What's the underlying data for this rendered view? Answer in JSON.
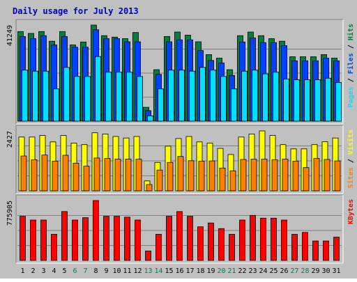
{
  "chart_data": {
    "type": "bar",
    "title": "Daily usage for July 2013",
    "categories": [
      "1",
      "2",
      "3",
      "4",
      "5",
      "6",
      "7",
      "8",
      "9",
      "10",
      "11",
      "12",
      "13",
      "14",
      "15",
      "16",
      "17",
      "18",
      "19",
      "20",
      "21",
      "22",
      "23",
      "24",
      "25",
      "26",
      "27",
      "28",
      "29",
      "30",
      "31"
    ],
    "weekend_days": [
      "6",
      "7",
      "13",
      "14",
      "20",
      "21",
      "27",
      "28"
    ],
    "colors": {
      "background": "#c0c0c0",
      "title": "#0000c0",
      "hits": "#008040",
      "files": "#0040ff",
      "pages": "#00e0ff",
      "visits": "#ffff00",
      "sites": "#ff8000",
      "kbytes": "#ff0000",
      "weekend_label": "#008040",
      "weekday_label": "#000000"
    },
    "panels": [
      {
        "id": "hits-files-pages",
        "y_label": "41249",
        "ylim": [
          0,
          41249
        ],
        "legend": [
          {
            "name": "Pages",
            "color": "#00e0ff"
          },
          {
            "name": "Files",
            "color": "#0040ff"
          },
          {
            "name": "Hits",
            "color": "#008040"
          }
        ],
        "series": [
          {
            "name": "Hits",
            "color": "#008040",
            "values": [
              38480,
              37650,
              38480,
              34300,
              38480,
              32740,
              33990,
              41249,
              36710,
              36080,
              35410,
              38060,
              5960,
              22090,
              36340,
              38270,
              36920,
              34070,
              28570,
              27040,
              22090,
              36710,
              38270,
              36710,
              35410,
              34300,
              27660,
              27660,
              27660,
              28570,
              27040
            ]
          },
          {
            "name": "Files",
            "color": "#0040ff",
            "values": [
              36340,
              35410,
              36710,
              32740,
              36340,
              31740,
              31740,
              39260,
              35410,
              35410,
              34070,
              34070,
              4500,
              20080,
              34070,
              34900,
              34900,
              30300,
              26070,
              25000,
              19640,
              33990,
              35750,
              33710,
              33710,
              32440,
              25930,
              25930,
              25930,
              27040,
              25930
            ]
          },
          {
            "name": "Pages",
            "color": "#00e0ff",
            "values": [
              21920,
              21460,
              21460,
              13850,
              23080,
              19200,
              19200,
              27740,
              21000,
              21000,
              21000,
              19200,
              2310,
              13850,
              21920,
              21920,
              21460,
              23080,
              21920,
              19200,
              13850,
              21460,
              21920,
              20310,
              21000,
              18040,
              17770,
              17770,
              17770,
              18450,
              16610
            ]
          }
        ]
      },
      {
        "id": "visits-sites",
        "y_label": "2427",
        "ylim": [
          0,
          2427
        ],
        "legend": [
          {
            "name": "Sites",
            "color": "#ff8000"
          },
          {
            "name": "Visits",
            "color": "#ffff00"
          }
        ],
        "series": [
          {
            "name": "Visits",
            "color": "#ffff00",
            "values": [
              2180,
              2180,
              2240,
              1980,
              2240,
              1930,
              1870,
              2350,
              2300,
              2200,
              2140,
              2200,
              400,
              1150,
              1810,
              2120,
              2200,
              1980,
              1930,
              1720,
              1470,
              2180,
              2300,
              2427,
              2240,
              1870,
              1700,
              1700,
              1870,
              1990,
              2140
            ]
          },
          {
            "name": "Sites",
            "color": "#ff8000",
            "values": [
              1410,
              1260,
              1450,
              1200,
              1440,
              1120,
              1000,
              1330,
              1310,
              1280,
              1280,
              1280,
              250,
              840,
              1150,
              1390,
              1220,
              1200,
              1210,
              920,
              810,
              1270,
              1280,
              1280,
              1260,
              1280,
              1200,
              940,
              1310,
              1270,
              1210
            ]
          }
        ]
      },
      {
        "id": "kbytes",
        "y_label": "775905",
        "ylim": [
          0,
          775905
        ],
        "legend": [
          {
            "name": "KBytes",
            "color": "#ff0000"
          }
        ],
        "series": [
          {
            "name": "KBytes",
            "color": "#ff0000",
            "values": [
              572000,
              523000,
              523000,
              338000,
              633000,
              523000,
              554000,
              775905,
              572000,
              572000,
              560000,
              523000,
              123000,
              338000,
              572000,
              633000,
              572000,
              436000,
              485000,
              412000,
              338000,
              523000,
              584000,
              548000,
              548000,
              523000,
              338000,
              363000,
              252000,
              252000,
              302000
            ]
          }
        ]
      }
    ]
  }
}
